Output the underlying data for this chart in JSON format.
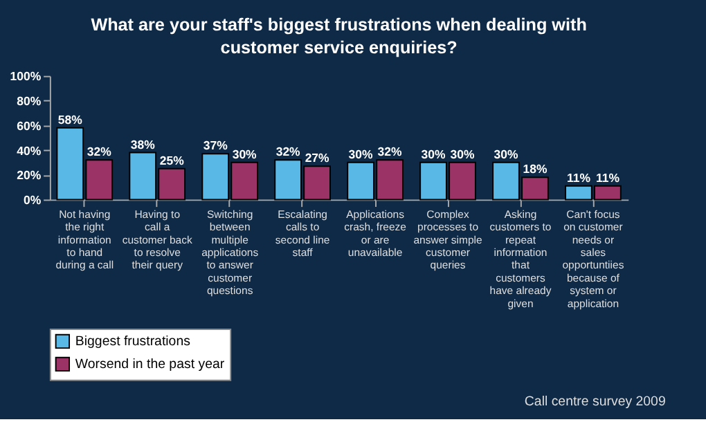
{
  "chart_data": {
    "type": "bar",
    "title": "What are your staff's biggest frustrations when dealing with customer service enquiries?",
    "categories": [
      "Not having the right information to hand during a call",
      "Having to call a customer back to resolve their query",
      "Switching between multiple applications to answer customer questions",
      "Escalating calls to second line staff",
      "Applications crash, freeze or are unavailable",
      "Complex processes to answer simple customer queries",
      "Asking customers to repeat information that customers have already given",
      "Can't focus on customer needs or sales opportuntiies because of system or application"
    ],
    "series": [
      {
        "name": "Biggest frustrations",
        "color": "#5ab8e6",
        "values": [
          58,
          38,
          37,
          32,
          30,
          30,
          30,
          11
        ],
        "value_labels": [
          "58%",
          "38%",
          "37%",
          "32%",
          "30%",
          "30%",
          "30%",
          "11%"
        ]
      },
      {
        "name": "Worsend in the past year",
        "color": "#9c3366",
        "values": [
          32,
          25,
          30,
          27,
          32,
          30,
          18,
          11
        ],
        "value_labels": [
          "32%",
          "25%",
          "30%",
          "27%",
          "32%",
          "30%",
          "18%",
          "11%"
        ]
      }
    ],
    "ylim": [
      0,
      100
    ],
    "yticks": [
      {
        "value": 0,
        "label": "0%"
      },
      {
        "value": 20,
        "label": "20%"
      },
      {
        "value": 40,
        "label": "40%"
      },
      {
        "value": 60,
        "label": "60%"
      },
      {
        "value": 80,
        "label": "80%"
      },
      {
        "value": 100,
        "label": "100%"
      }
    ],
    "grid": false,
    "legend": "bottom",
    "annotations": [
      "Call centre survey 2009"
    ]
  }
}
